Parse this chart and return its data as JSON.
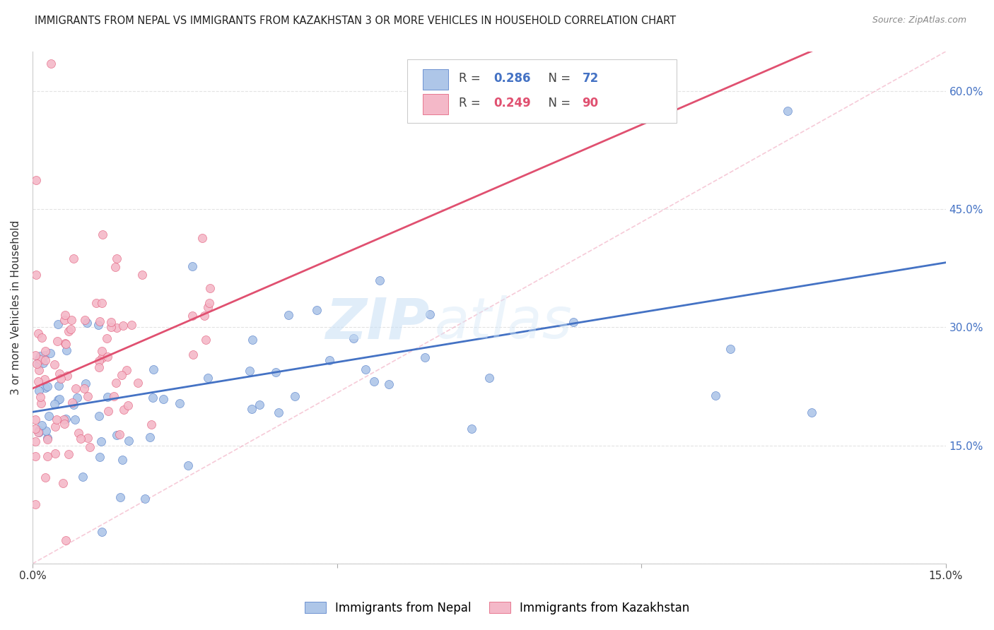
{
  "title": "IMMIGRANTS FROM NEPAL VS IMMIGRANTS FROM KAZAKHSTAN 3 OR MORE VEHICLES IN HOUSEHOLD CORRELATION CHART",
  "source": "Source: ZipAtlas.com",
  "ylabel": "3 or more Vehicles in Household",
  "xlabel_nepal": "Immigrants from Nepal",
  "xlabel_kazakhstan": "Immigrants from Kazakhstan",
  "R_nepal": 0.286,
  "N_nepal": 72,
  "R_kazakhstan": 0.249,
  "N_kazakhstan": 90,
  "xmin": 0.0,
  "xmax": 0.15,
  "ymin": 0.0,
  "ymax": 0.65,
  "color_nepal": "#aec6e8",
  "color_kazakhstan": "#f4b8c8",
  "trendline_nepal": "#4472c4",
  "trendline_kazakhstan": "#e05070",
  "yticks": [
    0.0,
    0.15,
    0.3,
    0.45,
    0.6
  ],
  "ytick_labels": [
    "",
    "15.0%",
    "30.0%",
    "45.0%",
    "60.0%"
  ],
  "xticks": [
    0.0,
    0.05,
    0.1,
    0.15
  ],
  "xtick_labels": [
    "0.0%",
    "",
    "",
    "15.0%"
  ],
  "grid_color": "#e0e0e0",
  "watermark_zip": "ZIP",
  "watermark_atlas": "atlas",
  "background_color": "#ffffff"
}
